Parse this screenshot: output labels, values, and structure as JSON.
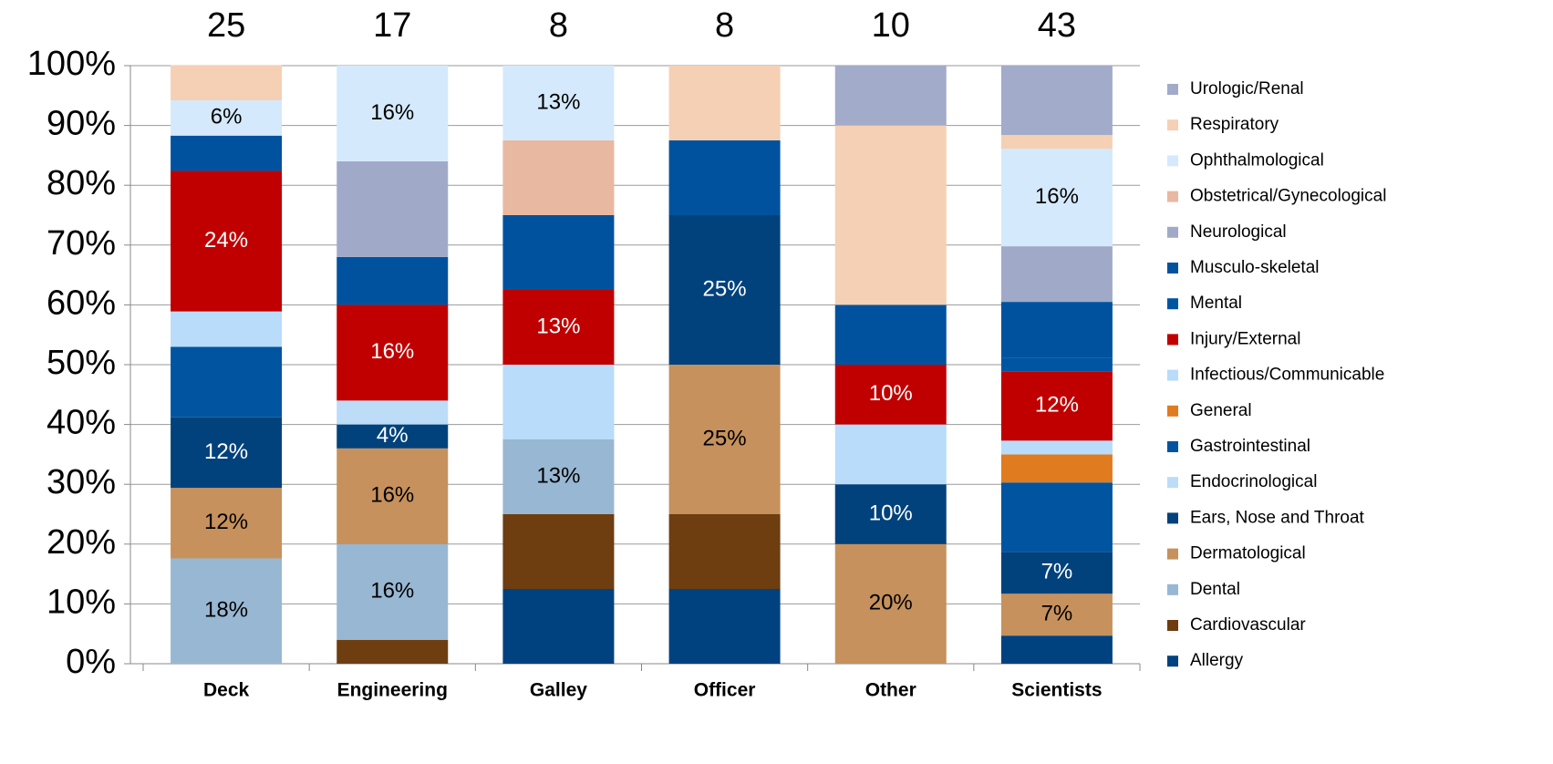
{
  "chart_data": {
    "type": "stacked_bar_100",
    "categories": [
      "Deck",
      "Engineering",
      "Galley",
      "Officer",
      "Other",
      "Scientists"
    ],
    "category_counts": [
      25,
      17,
      8,
      8,
      10,
      43
    ],
    "ylim": [
      0,
      100
    ],
    "yticks": [
      {
        "value": 0,
        "label": "0%"
      },
      {
        "value": 10,
        "label": "10%"
      },
      {
        "value": 20,
        "label": "20%"
      },
      {
        "value": 30,
        "label": "30%"
      },
      {
        "value": 40,
        "label": "40%"
      },
      {
        "value": 50,
        "label": "50%"
      },
      {
        "value": 60,
        "label": "60%"
      },
      {
        "value": 70,
        "label": "70%"
      },
      {
        "value": 80,
        "label": "80%"
      },
      {
        "value": 90,
        "label": "90%"
      },
      {
        "value": 100,
        "label": "100%"
      }
    ],
    "grid": true,
    "legend": "right",
    "series": [
      {
        "name": "Allergy",
        "color": "#00427f",
        "values": [
          0,
          0,
          12.5,
          12.5,
          0,
          4.7
        ]
      },
      {
        "name": "Cardiovascular",
        "color": "#6e3d10",
        "values": [
          0,
          4,
          12.5,
          12.5,
          0,
          0
        ]
      },
      {
        "name": "Dental",
        "color": "#98b7d3",
        "values": [
          17.6,
          16,
          12.5,
          0,
          0,
          0
        ],
        "value_labels": [
          "18%",
          "16%",
          "13%",
          null,
          null,
          null
        ]
      },
      {
        "name": "Dermatological",
        "color": "#c6915c",
        "values": [
          11.8,
          16,
          0,
          25,
          20,
          7.0
        ],
        "value_labels": [
          "12%",
          "16%",
          null,
          "25%",
          "20%",
          "7%"
        ]
      },
      {
        "name": "Ears, Nose and Throat",
        "color": "#02427c",
        "values": [
          11.8,
          4,
          0,
          25,
          10,
          7.0
        ],
        "value_labels": [
          "12%",
          "4%",
          null,
          "25%",
          "10%",
          "7%"
        ]
      },
      {
        "name": "Endocrinological",
        "color": "#bcdcf8",
        "values": [
          0,
          4,
          0,
          0,
          0,
          0
        ]
      },
      {
        "name": "Gastrointestinal",
        "color": "#0054a0",
        "values": [
          11.8,
          0,
          0,
          0,
          0,
          11.6
        ]
      },
      {
        "name": "General",
        "color": "#e07b20",
        "values": [
          0,
          0,
          0,
          0,
          0,
          4.7
        ]
      },
      {
        "name": "Infectious/Communicable",
        "color": "#b8dcfa",
        "values": [
          5.9,
          0,
          12.5,
          0,
          10,
          2.3
        ]
      },
      {
        "name": "Injury/External",
        "color": "#c00000",
        "values": [
          23.5,
          16,
          12.5,
          0,
          10,
          11.6
        ],
        "value_labels": [
          "24%",
          "16%",
          "13%",
          null,
          "10%",
          "12%"
        ]
      },
      {
        "name": "Mental",
        "color": "#0055a2",
        "values": [
          0,
          0,
          0,
          0,
          0,
          2.3
        ]
      },
      {
        "name": "Musculo-skeletal",
        "color": "#00529e",
        "values": [
          5.9,
          8,
          12.5,
          12.5,
          10,
          9.3
        ]
      },
      {
        "name": "Neurological",
        "color": "#a0aac8",
        "values": [
          0,
          16,
          0,
          0,
          0,
          9.3
        ]
      },
      {
        "name": "Obstetrical/Gynecological",
        "color": "#e9b8a0",
        "values": [
          0,
          0,
          12.5,
          0,
          0,
          0
        ]
      },
      {
        "name": "Ophthalmological",
        "color": "#d4e9fb",
        "values": [
          5.9,
          16,
          12.5,
          0,
          0,
          16.3
        ],
        "value_labels": [
          "6%",
          "16%",
          "13%",
          null,
          null,
          "16%"
        ]
      },
      {
        "name": "Respiratory",
        "color": "#f5d0b4",
        "values": [
          5.9,
          0,
          0,
          12.5,
          30,
          2.3
        ]
      },
      {
        "name": "Urologic/Renal",
        "color": "#a2abc9",
        "values": [
          0,
          0,
          0,
          0,
          10,
          11.6
        ]
      }
    ]
  }
}
